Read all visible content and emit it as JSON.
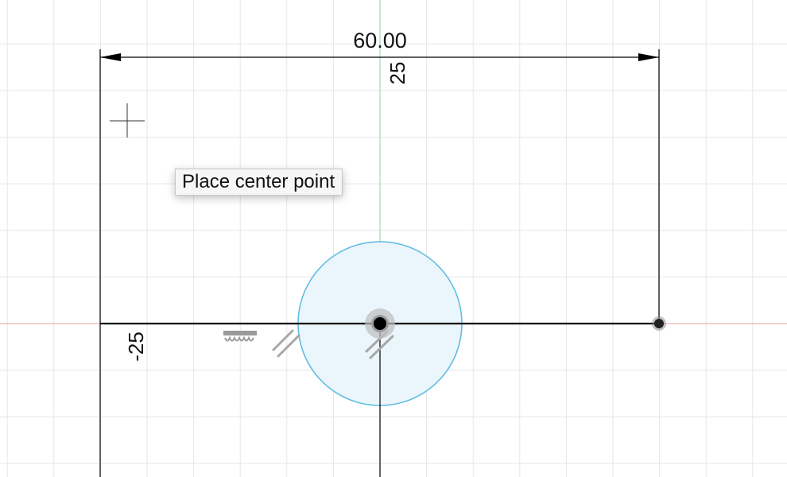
{
  "sketch": {
    "horizontal_dimension_value": "60.00",
    "vertical_axis_label_top": "25",
    "vertical_axis_label_bottom": "-25",
    "tooltip": "Place center point"
  },
  "colors": {
    "grid": "#e6e6e6",
    "x_axis": "#e8a0a0",
    "y_axis": "#8fd3a0",
    "sketch_line": "#000000",
    "circle_stroke": "#5bbbe0",
    "circle_fill": "#eaf5fc",
    "constraint_icon": "#b0b0b0"
  },
  "icons": {
    "cursor": "crosshair-icon",
    "horizontal_constraint": "horizontal-constraint-icon",
    "parallel_constraint": "parallel-constraint-icon",
    "coincident_point": "center-point-icon",
    "endpoint": "endpoint-icon"
  }
}
